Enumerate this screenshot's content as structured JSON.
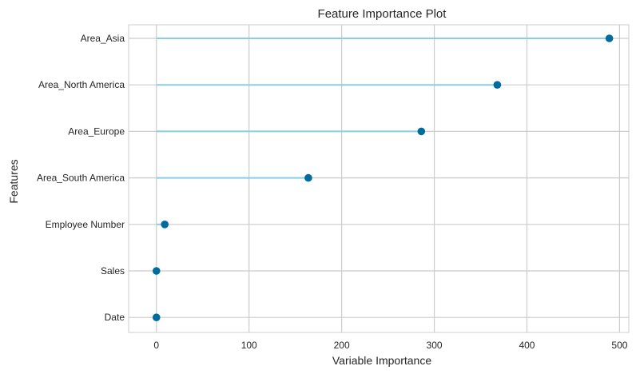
{
  "chart_data": {
    "type": "lollipop",
    "title": "Feature Importance Plot",
    "xlabel": "Variable Importance",
    "ylabel": "Features",
    "xlim": [
      -30,
      510
    ],
    "xticks": [
      0,
      100,
      200,
      300,
      400,
      500
    ],
    "grid": true,
    "categories": [
      "Area_Asia",
      "Area_North America",
      "Area_Europe",
      "Area_South America",
      "Employee Number",
      "Sales",
      "Date"
    ],
    "values": [
      489,
      368,
      286,
      164,
      9,
      0,
      0
    ],
    "stem_color": "#87ceeb",
    "marker_color": "#006b9f",
    "grid_color": "#cccccc"
  }
}
